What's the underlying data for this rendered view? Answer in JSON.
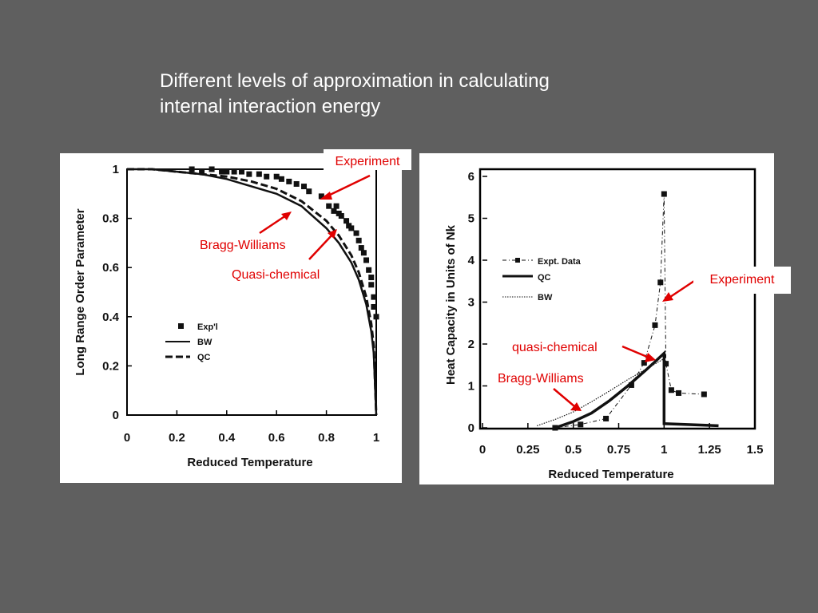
{
  "slide": {
    "title_line1": "Different levels of approximation in calculating",
    "title_line2": "internal interaction energy",
    "background": "#5f5f5f",
    "annotation_color": "#e00000"
  },
  "chart_data": [
    {
      "type": "line",
      "xlabel": "Reduced Temperature",
      "ylabel": "Long Range Order Parameter",
      "xlim": [
        0,
        1
      ],
      "ylim": [
        0,
        1
      ],
      "xticks": [
        "0",
        "0.2",
        "0.4",
        "0.6",
        "0.8",
        "1"
      ],
      "yticks": [
        "0",
        "0.2",
        "0.4",
        "0.6",
        "0.8",
        "1"
      ],
      "grid": false,
      "legend_position": "lower-left",
      "series": [
        {
          "name": "Exp'l",
          "style": "markers",
          "x": [
            0.26,
            0.3,
            0.34,
            0.38,
            0.4,
            0.43,
            0.46,
            0.49,
            0.53,
            0.56,
            0.6,
            0.62,
            0.65,
            0.68,
            0.71,
            0.73,
            0.78,
            0.81,
            0.83,
            0.84,
            0.85,
            0.86,
            0.88,
            0.89,
            0.9,
            0.92,
            0.93,
            0.94,
            0.95,
            0.96,
            0.97,
            0.98,
            0.98,
            0.99,
            0.99,
            1.0
          ],
          "y": [
            1.0,
            0.99,
            1.0,
            0.99,
            0.99,
            0.99,
            0.99,
            0.98,
            0.98,
            0.97,
            0.97,
            0.96,
            0.95,
            0.94,
            0.93,
            0.91,
            0.89,
            0.85,
            0.83,
            0.85,
            0.82,
            0.81,
            0.79,
            0.77,
            0.76,
            0.74,
            0.71,
            0.68,
            0.66,
            0.63,
            0.59,
            0.56,
            0.53,
            0.48,
            0.44,
            0.4
          ]
        },
        {
          "name": "BW",
          "style": "solid",
          "x": [
            0,
            0.1,
            0.2,
            0.3,
            0.4,
            0.5,
            0.6,
            0.7,
            0.8,
            0.85,
            0.9,
            0.93,
            0.96,
            0.98,
            0.99,
            1.0
          ],
          "y": [
            1.0,
            1.0,
            0.99,
            0.98,
            0.96,
            0.93,
            0.9,
            0.85,
            0.76,
            0.7,
            0.62,
            0.55,
            0.45,
            0.34,
            0.25,
            0.0
          ]
        },
        {
          "name": "QC",
          "style": "dashed",
          "x": [
            0,
            0.1,
            0.2,
            0.3,
            0.4,
            0.5,
            0.6,
            0.7,
            0.8,
            0.85,
            0.9,
            0.93,
            0.96,
            0.98,
            0.99,
            1.0
          ],
          "y": [
            1.0,
            1.0,
            0.99,
            0.98,
            0.97,
            0.95,
            0.92,
            0.87,
            0.79,
            0.73,
            0.65,
            0.58,
            0.48,
            0.37,
            0.28,
            0.0
          ]
        },
        {
          "name": "",
          "style": "solid-thin",
          "x": [
            0,
            1.0
          ],
          "y": [
            1.0,
            1.0
          ]
        }
      ],
      "annotations": [
        {
          "text": "Experiment",
          "boxed": true
        },
        {
          "text": "Bragg-Williams"
        },
        {
          "text": "Quasi-chemical"
        }
      ]
    },
    {
      "type": "line",
      "xlabel": "Reduced Temperature",
      "ylabel": "Heat Capacity in Units of Nk",
      "xlim": [
        0,
        1.5
      ],
      "ylim": [
        0,
        6
      ],
      "xticks": [
        "0",
        "0.25",
        "0.5",
        "0.75",
        "1",
        "1.25",
        "1.5"
      ],
      "yticks": [
        "0",
        "1",
        "2",
        "3",
        "4",
        "5",
        "6"
      ],
      "grid": false,
      "legend_position": "middle-left",
      "series": [
        {
          "name": "Expt. Data",
          "style": "dash-dot-markers",
          "x": [
            0.4,
            0.54,
            0.68,
            0.82,
            0.89,
            0.95,
            0.98,
            1.0,
            1.01,
            1.04,
            1.08,
            1.22
          ],
          "y": [
            0.0,
            0.08,
            0.22,
            1.02,
            1.55,
            2.45,
            3.47,
            5.58,
            1.53,
            0.9,
            0.83,
            0.8
          ]
        },
        {
          "name": "QC",
          "style": "solid-thick",
          "x": [
            0.4,
            0.5,
            0.6,
            0.7,
            0.8,
            0.9,
            0.95,
            1.0,
            1.0,
            1.3
          ],
          "y": [
            0.0,
            0.15,
            0.35,
            0.65,
            1.0,
            1.38,
            1.58,
            1.78,
            0.1,
            0.05
          ]
        },
        {
          "name": "BW",
          "style": "dotted",
          "x": [
            0.3,
            0.4,
            0.5,
            0.6,
            0.7,
            0.8,
            0.9,
            1.0
          ],
          "y": [
            0.05,
            0.2,
            0.38,
            0.62,
            0.88,
            1.15,
            1.4,
            1.65
          ]
        }
      ],
      "annotations": [
        {
          "text": "Experiment",
          "boxed": true
        },
        {
          "text": "quasi-chemical"
        },
        {
          "text": "Bragg-Williams"
        }
      ]
    }
  ]
}
